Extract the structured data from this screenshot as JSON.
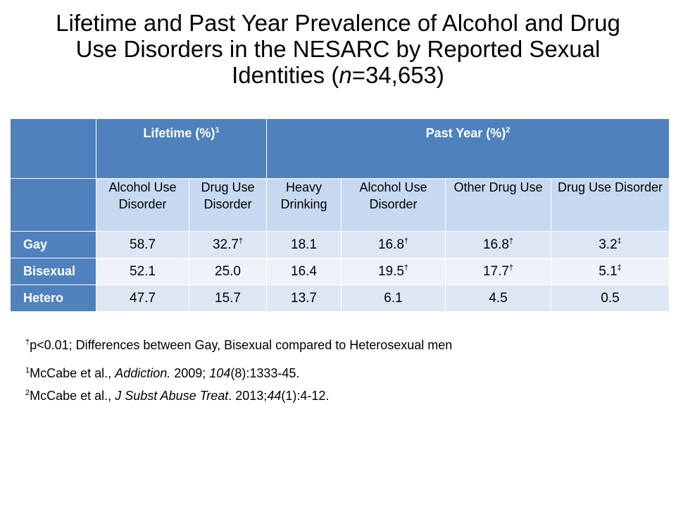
{
  "title": {
    "line1": "Lifetime and Past Year Prevalence of Alcohol and Drug",
    "line2": "Use Disorders in the NESARC by Reported Sexual",
    "line3_pre": "Identities (",
    "line3_n": "n",
    "line3_post": "=34,653)"
  },
  "table": {
    "group_headers": [
      {
        "label": "Lifetime (%)",
        "sup": "1"
      },
      {
        "label": "Past Year (%)",
        "sup": "2"
      }
    ],
    "columns": [
      "Alcohol Use Disorder",
      "Drug Use Disorder",
      "Heavy Drinking",
      "Alcohol Use Disorder",
      "Other Drug Use",
      "Drug Use Disorder"
    ],
    "rows": [
      {
        "label": "Gay",
        "cells": [
          {
            "v": "58.7",
            "m": ""
          },
          {
            "v": "32.7",
            "m": "†"
          },
          {
            "v": "18.1",
            "m": ""
          },
          {
            "v": "16.8",
            "m": "†"
          },
          {
            "v": "16.8",
            "m": "†"
          },
          {
            "v": "3.2",
            "m": "‡"
          }
        ]
      },
      {
        "label": "Bisexual",
        "cells": [
          {
            "v": "52.1",
            "m": ""
          },
          {
            "v": "25.0",
            "m": ""
          },
          {
            "v": "16.4",
            "m": ""
          },
          {
            "v": "19.5",
            "m": "†"
          },
          {
            "v": "17.7",
            "m": "†"
          },
          {
            "v": "5.1",
            "m": "‡"
          }
        ]
      },
      {
        "label": "Hetero",
        "cells": [
          {
            "v": "47.7",
            "m": ""
          },
          {
            "v": "15.7",
            "m": ""
          },
          {
            "v": "13.7",
            "m": ""
          },
          {
            "v": "6.1",
            "m": ""
          },
          {
            "v": "4.5",
            "m": ""
          },
          {
            "v": "0.5",
            "m": ""
          }
        ]
      }
    ]
  },
  "notes": {
    "sig": {
      "mark": "†",
      "text": "p<0.01; Differences between Gay, Bisexual compared to Heterosexual men"
    },
    "ref1": {
      "sup": "1",
      "pre": "McCabe et al., ",
      "journal": "Addiction.",
      "mid": " 2009; ",
      "vol": "104",
      "post": "(8):1333-45."
    },
    "ref2": {
      "sup": "2",
      "pre": "McCabe et al., ",
      "journal": "J Subst Abuse Treat",
      "mid": ". 2013;",
      "vol": "44",
      "post": "(1):4-12."
    }
  },
  "colors": {
    "header_blue": "#4f81bd",
    "subheader": "#c6d9f1",
    "row_odd": "#dde6f2",
    "row_even": "#eef2f9"
  }
}
